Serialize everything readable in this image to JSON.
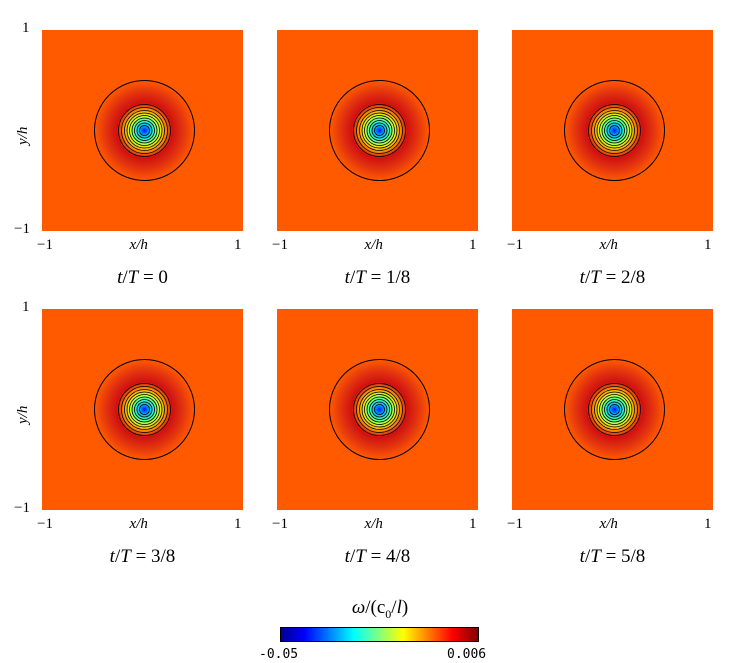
{
  "chart_data": {
    "type": "heatmap",
    "quantity": "ω/(c0/l)",
    "xlabel": "x/h",
    "ylabel": "y/h",
    "xlim": [
      -1,
      1
    ],
    "ylim": [
      -1,
      1
    ],
    "x_ticks": [
      "−1",
      "1"
    ],
    "y_ticks": [
      "1",
      "−1"
    ],
    "colormap": "jet",
    "colorbar": {
      "min": -0.05,
      "max": 0.006,
      "min_label": "-0.05",
      "max_label": "0.006",
      "title_prefix": "ω/(c",
      "title_sub": "0",
      "title_suffix": "/l)"
    },
    "panels": [
      {
        "caption": "t/T = 0",
        "t_over_T": 0
      },
      {
        "caption": "t/T = 1/8",
        "t_over_T": 0.125
      },
      {
        "caption": "t/T = 2/8",
        "t_over_T": 0.25
      },
      {
        "caption": "t/T = 3/8",
        "t_over_T": 0.375
      },
      {
        "caption": "t/T = 4/8",
        "t_over_T": 0.5
      },
      {
        "caption": "t/T = 5/8",
        "t_over_T": 0.625
      }
    ],
    "colors": {
      "background": "#ff5a00",
      "ring": "#c81e0a",
      "core": "#1428ff"
    }
  }
}
